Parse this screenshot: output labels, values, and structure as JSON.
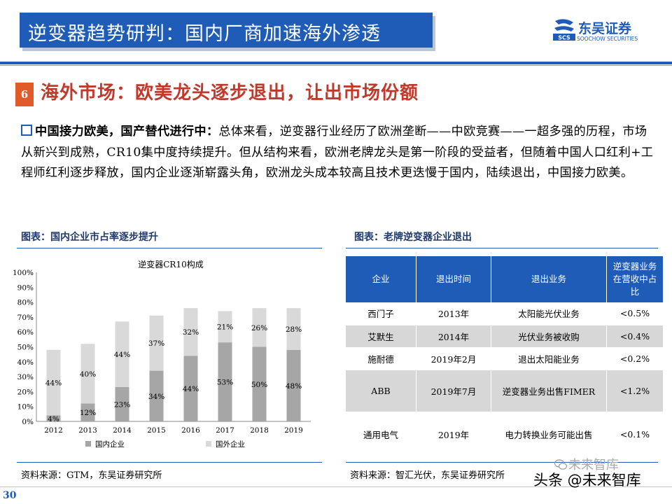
{
  "header": {
    "title": "逆变器趋势研判：国内厂商加速海外渗透",
    "logo_cn": "东吴证券",
    "logo_en": "SOOCHOW SECURITIES",
    "logo_mark": "SCS"
  },
  "section": {
    "number": "6",
    "title": "海外市场：欧美龙头逐步退出，让出市场份额"
  },
  "body": {
    "lead": "中国接力欧美，国产替代进行中：",
    "text": "总体来看，逆变器行业经历了欧洲垄断——中欧竞赛——一超多强的历程，市场从新兴到成熟，CR10集中度持续提升。但从结构来看，欧洲老牌龙头是第一阶段的受益者，但随着中国人口红利+工程师红利逐步释放，国内企业逐渐崭露头角，欧洲龙头成本较高且技术更迭慢于国内，陆续退出，中国接力欧美。"
  },
  "left_panel": {
    "caption": "图表：国内企业市占率逐步提升",
    "source": "资料来源：GTM，东吴证券研究所"
  },
  "right_panel": {
    "caption": "图表：老牌逆变器企业退出",
    "source": "资料来源：智汇光伏，东吴证券研究所"
  },
  "chart_data": {
    "type": "bar",
    "stacked": true,
    "title": "逆变器CR10构成",
    "categories": [
      "2012",
      "2013",
      "2014",
      "2015",
      "2016",
      "2017",
      "2018",
      "2019"
    ],
    "series": [
      {
        "name": "国内企业",
        "color": "#a6a6a6",
        "values": [
          4,
          12,
          23,
          34,
          44,
          53,
          50,
          48
        ]
      },
      {
        "name": "国外企业",
        "color": "#d9d9d9",
        "values": [
          44,
          40,
          44,
          37,
          32,
          21,
          26,
          28
        ]
      }
    ],
    "labels": {
      "国内企业": [
        "4%",
        "12%",
        "23%",
        "34%",
        "44%",
        "53%",
        "50%",
        "48%"
      ],
      "国外企业": [
        "44%",
        "40%",
        "44%",
        "37%",
        "32%",
        "21%",
        "26%",
        "28%"
      ]
    },
    "yticks": [
      "0%",
      "10%",
      "20%",
      "30%",
      "40%",
      "50%",
      "60%",
      "70%",
      "80%",
      "90%",
      "100%"
    ],
    "ylim": [
      0,
      100
    ],
    "legend_position": "bottom"
  },
  "table": {
    "headers": [
      "企业",
      "退出时间",
      "退出业务",
      "逆变器业务在营收中占比"
    ],
    "rows": [
      [
        "西门子",
        "2013年",
        "太阳能光伏业务",
        "<0.5%"
      ],
      [
        "艾默生",
        "2014年",
        "光伏业务被收购",
        "<0.4%"
      ],
      [
        "施耐德",
        "2019年2月",
        "退出太阳能业务",
        "<0.2%"
      ],
      [
        "ABB",
        "2019年7月",
        "逆变器业务出售FIMER",
        "<1.2%"
      ],
      [
        "通用电气",
        "2019年",
        "电力转换业务可能出售",
        "<0.1%"
      ]
    ]
  },
  "footer": {
    "page": "30",
    "watermark": "头条 @未来智库",
    "watermark_faint": "未来智库"
  },
  "colors": {
    "brand_blue": "#1f5cb8",
    "section_red": "#c0392b",
    "section_badge": "#e05a2a"
  }
}
